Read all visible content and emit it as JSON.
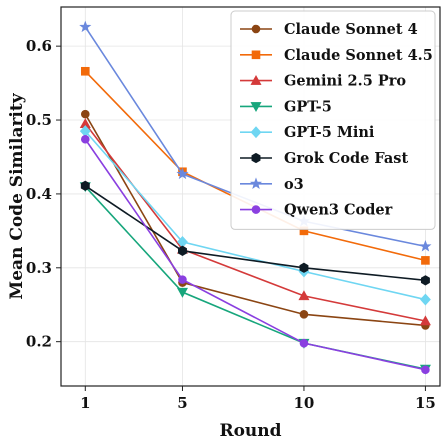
{
  "chart_data": {
    "type": "line",
    "title": "",
    "xlabel": "Round",
    "ylabel": "Mean Code Similarity",
    "x": [
      1,
      5,
      10,
      15
    ],
    "x_ticks": [
      "1",
      "5",
      "10",
      "15"
    ],
    "xlim": [
      0.0,
      15.6
    ],
    "y_ticks": [
      0.2,
      0.3,
      0.4,
      0.5,
      0.6
    ],
    "y_tick_labels": [
      "0.2",
      "0.3",
      "0.4",
      "0.5",
      "0.6"
    ],
    "ylim": [
      0.14,
      0.653
    ],
    "grid": true,
    "legend_position": "top-right",
    "series": [
      {
        "name": "Claude Sonnet 4",
        "color": "#8b4513",
        "marker": "circle",
        "values": [
          0.508,
          0.28,
          0.237,
          0.222
        ]
      },
      {
        "name": "Claude Sonnet 4.5",
        "color": "#f26a0a",
        "marker": "square",
        "values": [
          0.566,
          0.43,
          0.35,
          0.31
        ]
      },
      {
        "name": "Gemini 2.5 Pro",
        "color": "#d43a3a",
        "marker": "triangle-up",
        "values": [
          0.495,
          0.325,
          0.262,
          0.228
        ]
      },
      {
        "name": "GPT-5",
        "color": "#17a67c",
        "marker": "triangle-down",
        "values": [
          0.41,
          0.267,
          0.198,
          0.163
        ]
      },
      {
        "name": "GPT-5 Mini",
        "color": "#6fd6f2",
        "marker": "diamond",
        "values": [
          0.485,
          0.335,
          0.295,
          0.257
        ]
      },
      {
        "name": "Grok Code Fast",
        "color": "#0e1b24",
        "marker": "hexagon",
        "values": [
          0.411,
          0.323,
          0.3,
          0.283
        ]
      },
      {
        "name": "o3",
        "color": "#6a88dd",
        "marker": "star",
        "values": [
          0.626,
          0.427,
          0.363,
          0.329
        ]
      },
      {
        "name": "Qwen3 Coder",
        "color": "#8a3fe0",
        "marker": "circle",
        "values": [
          0.474,
          0.284,
          0.198,
          0.162
        ]
      }
    ]
  }
}
